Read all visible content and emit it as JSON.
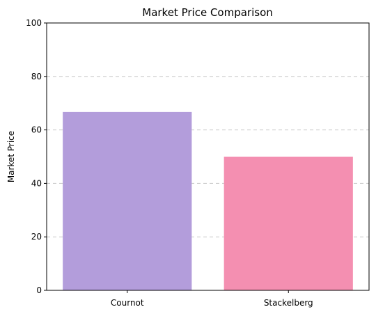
{
  "chart_data": {
    "type": "bar",
    "title": "Market Price Comparison",
    "xlabel": "",
    "ylabel": "Market Price",
    "categories": [
      "Cournot",
      "Stackelberg"
    ],
    "values": [
      66.7,
      50.0
    ],
    "colors": [
      "#b39ddb",
      "#f48fb1"
    ],
    "ylim": [
      0,
      100
    ],
    "yticks": [
      0,
      20,
      40,
      60,
      80,
      100
    ],
    "grid": "y-dashed",
    "legend": "none"
  }
}
